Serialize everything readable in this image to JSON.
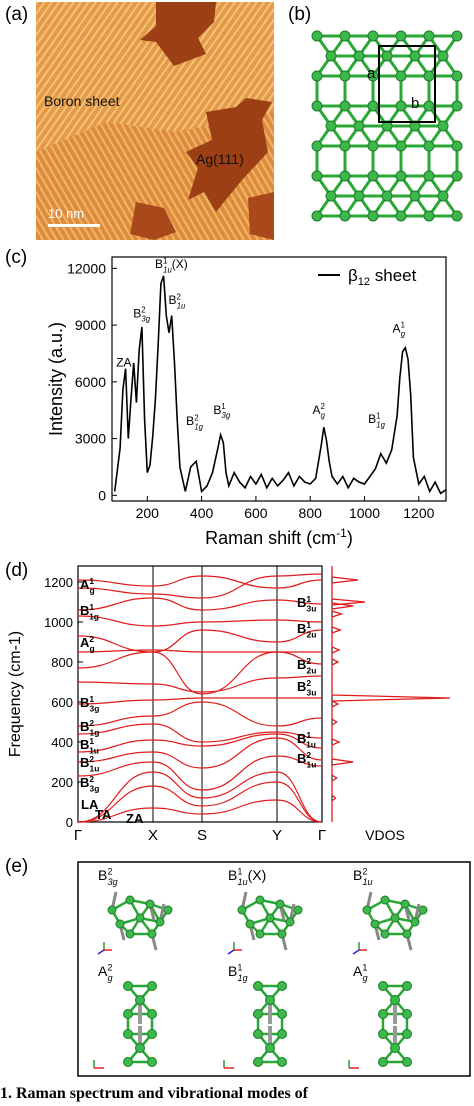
{
  "panels": {
    "a": {
      "label": "(a)",
      "boron_label": "Boron sheet",
      "ag_label": "Ag(111)",
      "scale_label": "10 nm"
    },
    "b": {
      "label": "(b)",
      "vec_a": "a",
      "vec_b": "b"
    },
    "c": {
      "label": "(c)"
    },
    "d": {
      "label": "(d)"
    },
    "e": {
      "label": "(e)",
      "modes": [
        {
          "base": "B",
          "sup": "2",
          "sub": "3g",
          "suffix": ""
        },
        {
          "base": "B",
          "sup": "1",
          "sub": "1u",
          "suffix": "(X)"
        },
        {
          "base": "B",
          "sup": "2",
          "sub": "1u",
          "suffix": ""
        },
        {
          "base": "A",
          "sup": "2",
          "sub": "g",
          "suffix": ""
        },
        {
          "base": "B",
          "sup": "1",
          "sub": "1g",
          "suffix": ""
        },
        {
          "base": "A",
          "sup": "1",
          "sub": "g",
          "suffix": ""
        }
      ]
    }
  },
  "chart_data": [
    {
      "type": "line",
      "panel": "c",
      "xlabel": "Raman shift (cm-1)",
      "ylabel": "Intensity (a.u.)",
      "xlim": [
        70,
        1300
      ],
      "ylim": [
        -300,
        12600
      ],
      "xticks": [
        200,
        400,
        600,
        800,
        1000,
        1200
      ],
      "yticks": [
        0,
        3000,
        6000,
        9000,
        12000
      ],
      "legend": {
        "label": "β12 sheet",
        "position": "top-right"
      },
      "x": [
        80,
        100,
        110,
        120,
        130,
        140,
        150,
        160,
        170,
        180,
        190,
        200,
        210,
        220,
        230,
        240,
        250,
        260,
        270,
        280,
        290,
        300,
        310,
        320,
        340,
        360,
        380,
        400,
        420,
        440,
        460,
        470,
        480,
        490,
        500,
        520,
        540,
        560,
        580,
        600,
        620,
        640,
        660,
        680,
        700,
        720,
        740,
        760,
        780,
        800,
        820,
        840,
        850,
        860,
        870,
        880,
        900,
        920,
        940,
        960,
        980,
        1000,
        1020,
        1040,
        1060,
        1080,
        1100,
        1120,
        1130,
        1140,
        1150,
        1160,
        1170,
        1180,
        1200,
        1220,
        1240,
        1260,
        1280,
        1300
      ],
      "series": [
        {
          "name": "β12 sheet",
          "values": [
            200,
            2500,
            5600,
            6700,
            3000,
            5100,
            7000,
            4900,
            7700,
            8900,
            4000,
            1200,
            1600,
            3100,
            5100,
            8000,
            11200,
            11600,
            9500,
            8600,
            9500,
            7000,
            4000,
            1500,
            200,
            1500,
            1800,
            200,
            500,
            1200,
            2500,
            3200,
            2800,
            1200,
            500,
            1200,
            700,
            400,
            1000,
            600,
            1100,
            400,
            900,
            500,
            800,
            1200,
            500,
            1000,
            700,
            600,
            900,
            2600,
            3600,
            2900,
            1800,
            1000,
            600,
            1000,
            400,
            900,
            700,
            600,
            1000,
            1400,
            2200,
            1700,
            2400,
            4200,
            6200,
            7600,
            7800,
            7200,
            5300,
            2000,
            600,
            1000,
            200,
            700,
            100,
            300
          ]
        }
      ],
      "annotations": [
        {
          "text": "ZA",
          "x": 115,
          "y": 6600
        },
        {
          "text": "B^2_3g",
          "x": 185,
          "y": 9200
        },
        {
          "text": "B^1_1u(X)",
          "x": 265,
          "y": 11800
        },
        {
          "text": "B^2_1u",
          "x": 315,
          "y": 9900
        },
        {
          "text": "B^2_1g",
          "x": 380,
          "y": 3500
        },
        {
          "text": "B^1_3g",
          "x": 480,
          "y": 4100
        },
        {
          "text": "A^2_g",
          "x": 845,
          "y": 4100
        },
        {
          "text": "B^1_1g",
          "x": 1050,
          "y": 3600
        },
        {
          "text": "A^1_g",
          "x": 1140,
          "y": 8400
        }
      ]
    },
    {
      "type": "line",
      "panel": "d",
      "ylabel": "Frequency (cm-1)",
      "ylim": [
        0,
        1280
      ],
      "yticks": [
        0,
        200,
        400,
        600,
        800,
        1000,
        1200
      ],
      "x_points": [
        "Γ",
        "X",
        "S",
        "Y",
        "Γ"
      ],
      "dos_label": "VDOS",
      "series": [
        {
          "values": [
            1210,
            1180,
            1230,
            1170,
            1210
          ]
        },
        {
          "values": [
            1170,
            1140,
            1120,
            1230,
            1240
          ]
        },
        {
          "values": [
            1060,
            1120,
            1060,
            1110,
            1090
          ]
        },
        {
          "values": [
            1030,
            980,
            1000,
            1010,
            1000
          ]
        },
        {
          "values": [
            930,
            850,
            960,
            900,
            960
          ]
        },
        {
          "values": [
            850,
            860,
            850,
            850,
            850
          ]
        },
        {
          "values": [
            770,
            850,
            640,
            850,
            790
          ]
        },
        {
          "values": [
            700,
            690,
            650,
            720,
            730
          ]
        },
        {
          "values": [
            590,
            610,
            620,
            620,
            620
          ]
        },
        {
          "values": [
            480,
            530,
            600,
            480,
            520
          ]
        },
        {
          "values": [
            440,
            490,
            400,
            450,
            420
          ]
        },
        {
          "values": [
            350,
            410,
            380,
            440,
            370
          ]
        },
        {
          "values": [
            300,
            350,
            270,
            420,
            310
          ]
        },
        {
          "values": [
            230,
            300,
            160,
            330,
            280
          ]
        },
        {
          "values": [
            0,
            250,
            120,
            250,
            0
          ]
        },
        {
          "values": [
            0,
            180,
            80,
            200,
            0
          ]
        },
        {
          "values": [
            0,
            70,
            40,
            110,
            0
          ]
        }
      ],
      "vdos_peaks": [
        {
          "y": 1210,
          "v": 0.22
        },
        {
          "y": 1100,
          "v": 0.28
        },
        {
          "y": 1080,
          "v": 0.18
        },
        {
          "y": 1040,
          "v": 0.08
        },
        {
          "y": 960,
          "v": 0.07
        },
        {
          "y": 860,
          "v": 0.06
        },
        {
          "y": 800,
          "v": 0.05
        },
        {
          "y": 620,
          "v": 1.0
        },
        {
          "y": 590,
          "v": 0.05
        },
        {
          "y": 500,
          "v": 0.04
        },
        {
          "y": 400,
          "v": 0.06
        },
        {
          "y": 300,
          "v": 0.18
        },
        {
          "y": 220,
          "v": 0.04
        },
        {
          "y": 120,
          "v": 0.03
        }
      ],
      "left_labels": [
        {
          "base": "A",
          "sup": "1",
          "sub": "g",
          "y": 1190
        },
        {
          "base": "B",
          "sup": "1",
          "sub": "1g",
          "y": 1060
        },
        {
          "base": "A",
          "sup": "2",
          "sub": "g",
          "y": 900
        },
        {
          "base": "B",
          "sup": "1",
          "sub": "3g",
          "y": 600
        },
        {
          "base": "B",
          "sup": "2",
          "sub": "1g",
          "y": 480
        },
        {
          "base": "B",
          "sup": "1",
          "sub": "1u",
          "y": 390
        },
        {
          "base": "B",
          "sup": "2",
          "sub": "1u",
          "y": 300
        },
        {
          "base": "B",
          "sup": "2",
          "sub": "3g",
          "y": 200
        }
      ],
      "branch_labels": [
        {
          "text": "LA",
          "x": "Γ",
          "y": 90
        },
        {
          "text": "TA",
          "x": "Γ",
          "y": 40
        },
        {
          "text": "ZA",
          "x": "Γ-X",
          "y": 20
        }
      ],
      "right_labels": [
        {
          "base": "B",
          "sup": "1",
          "sub": "3u",
          "y": 1100
        },
        {
          "base": "B",
          "sup": "1",
          "sub": "2u",
          "y": 970
        },
        {
          "base": "B",
          "sup": "2",
          "sub": "2u",
          "y": 790
        },
        {
          "base": "B",
          "sup": "2",
          "sub": "3u",
          "y": 680
        },
        {
          "base": "B",
          "sup": "1",
          "sub": "1u",
          "y": 420
        },
        {
          "base": "B",
          "sup": "2",
          "sub": "1u",
          "y": 320
        }
      ]
    }
  ],
  "caption": "1. Raman spectrum and vibrational modes of"
}
